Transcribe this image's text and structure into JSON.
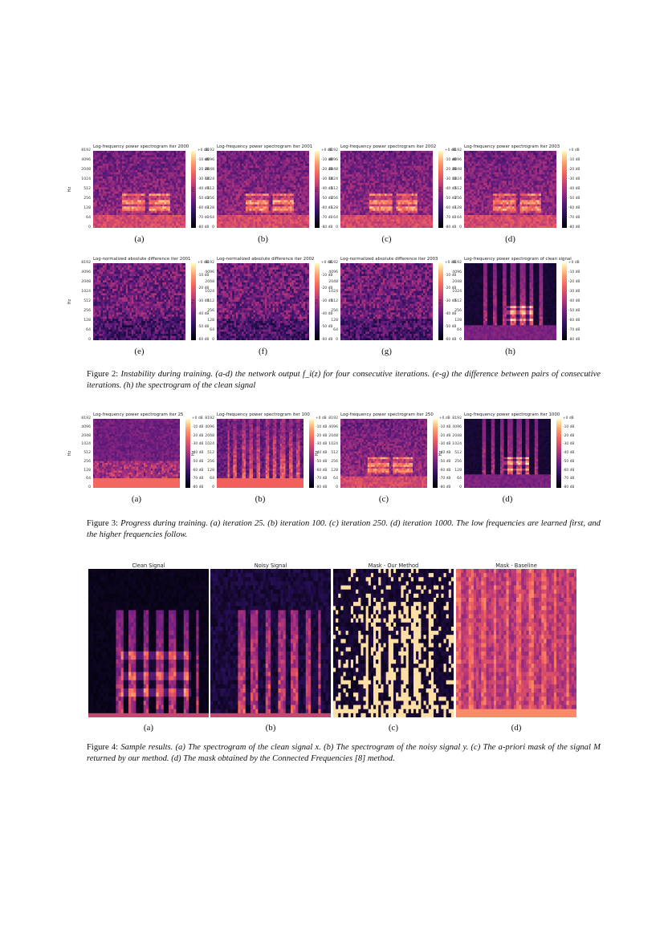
{
  "figure2": {
    "row1": [
      {
        "title": "Log-frequency power spectrogram iter 2000",
        "sub": "(a)"
      },
      {
        "title": "Log-frequency power spectrogram iter 2001",
        "sub": "(b)"
      },
      {
        "title": "Log-frequency power spectrogram iter 2002",
        "sub": "(c)"
      },
      {
        "title": "Log-frequency power spectrogram iter 2003",
        "sub": "(d)"
      }
    ],
    "row2": [
      {
        "title": "Log-normalized absolute difference iter 2001",
        "sub": "(e)"
      },
      {
        "title": "Log-normalized absolute difference iter 2002",
        "sub": "(f)"
      },
      {
        "title": "Log-normalized absolute difference iter 2003",
        "sub": "(g)"
      },
      {
        "title": "Log-frequency power spectrogram of clean signal",
        "sub": "(h)"
      }
    ],
    "yticks": [
      "8192",
      "4096",
      "2048",
      "1024",
      "512",
      "256",
      "128",
      "64",
      "0"
    ],
    "ylabel": "Hz",
    "cbar_80": [
      "+0 dB",
      "-10 dB",
      "-20 dB",
      "-30 dB",
      "-40 dB",
      "-50 dB",
      "-60 dB",
      "-70 dB",
      "-80 dB"
    ],
    "cbar_60": [
      "+0 dB",
      "-10 dB",
      "-20 dB",
      "-30 dB",
      "-40 dB",
      "-50 dB",
      "-60 dB"
    ],
    "caption_label": "Figure 2:",
    "caption_text": "Instability during training. (a-d) the network output f_i(z) for four consecutive iterations. (e-g) the difference between pairs of consecutive iterations. (h) the spectrogram of the clean signal"
  },
  "figure3": {
    "panels": [
      {
        "title": "Log-frequency power spectrogram iter 25",
        "sub": "(a)"
      },
      {
        "title": "Log-frequency power spectrogram iter 100",
        "sub": "(b)"
      },
      {
        "title": "Log-frequency power spectrogram iter 250",
        "sub": "(c)"
      },
      {
        "title": "Log-frequency power spectrogram iter 1000",
        "sub": "(d)"
      }
    ],
    "caption_label": "Figure 3:",
    "caption_text": "Progress during training. (a) iteration 25. (b) iteration 100. (c) iteration 250. (d) iteration 1000. The low frequencies are learned first, and the higher frequencies follow."
  },
  "figure4": {
    "panels": [
      {
        "title": "Clean Signal",
        "sub": "(a)"
      },
      {
        "title": "Noisy Signal",
        "sub": "(b)"
      },
      {
        "title": "Mask - Our Method",
        "sub": "(c)"
      },
      {
        "title": "Mask - Baseline",
        "sub": "(d)"
      }
    ],
    "caption_label": "Figure 4:",
    "caption_text": "Sample results. (a) The spectrogram of the clean signal x. (b) The spectrogram of the noisy signal y. (c) The a-priori mask of the signal M returned by our method. (d) The mask obtained by the Connected Frequencies [8] method."
  }
}
